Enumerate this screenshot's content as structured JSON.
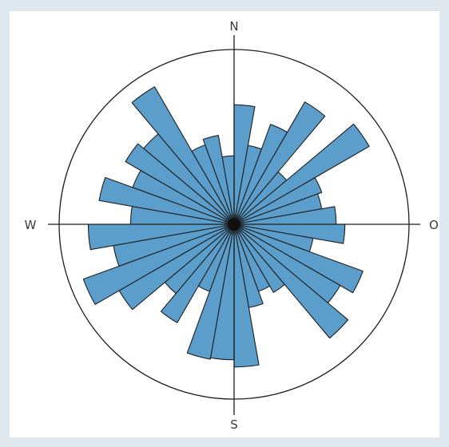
{
  "chart_data": {
    "type": "rose",
    "sectors": 36,
    "sector_width_deg": 10,
    "start_bearing_deg": 0,
    "direction": "clockwise",
    "compass": {
      "north": "N",
      "east": "O",
      "south": "S",
      "west": "W"
    },
    "title": "",
    "values": [
      0.82,
      0.55,
      0.73,
      0.97,
      0.47,
      1.07,
      0.64,
      0.61,
      0.7,
      0.76,
      0.55,
      0.94,
      0.84,
      1.02,
      0.54,
      0.49,
      0.58,
      0.98,
      0.93,
      0.94,
      0.49,
      0.78,
      0.62,
      0.91,
      1.1,
      0.84,
      1.0,
      0.71,
      0.94,
      0.74,
      0.86,
      0.81,
      1.09,
      0.58,
      0.62,
      0.47
    ],
    "scale_max": 1.2,
    "colors": {
      "bar": "#5b9ecb",
      "stroke": "#1e1e1e",
      "background": "#ffffff",
      "frame": "#dfe7ef"
    }
  }
}
